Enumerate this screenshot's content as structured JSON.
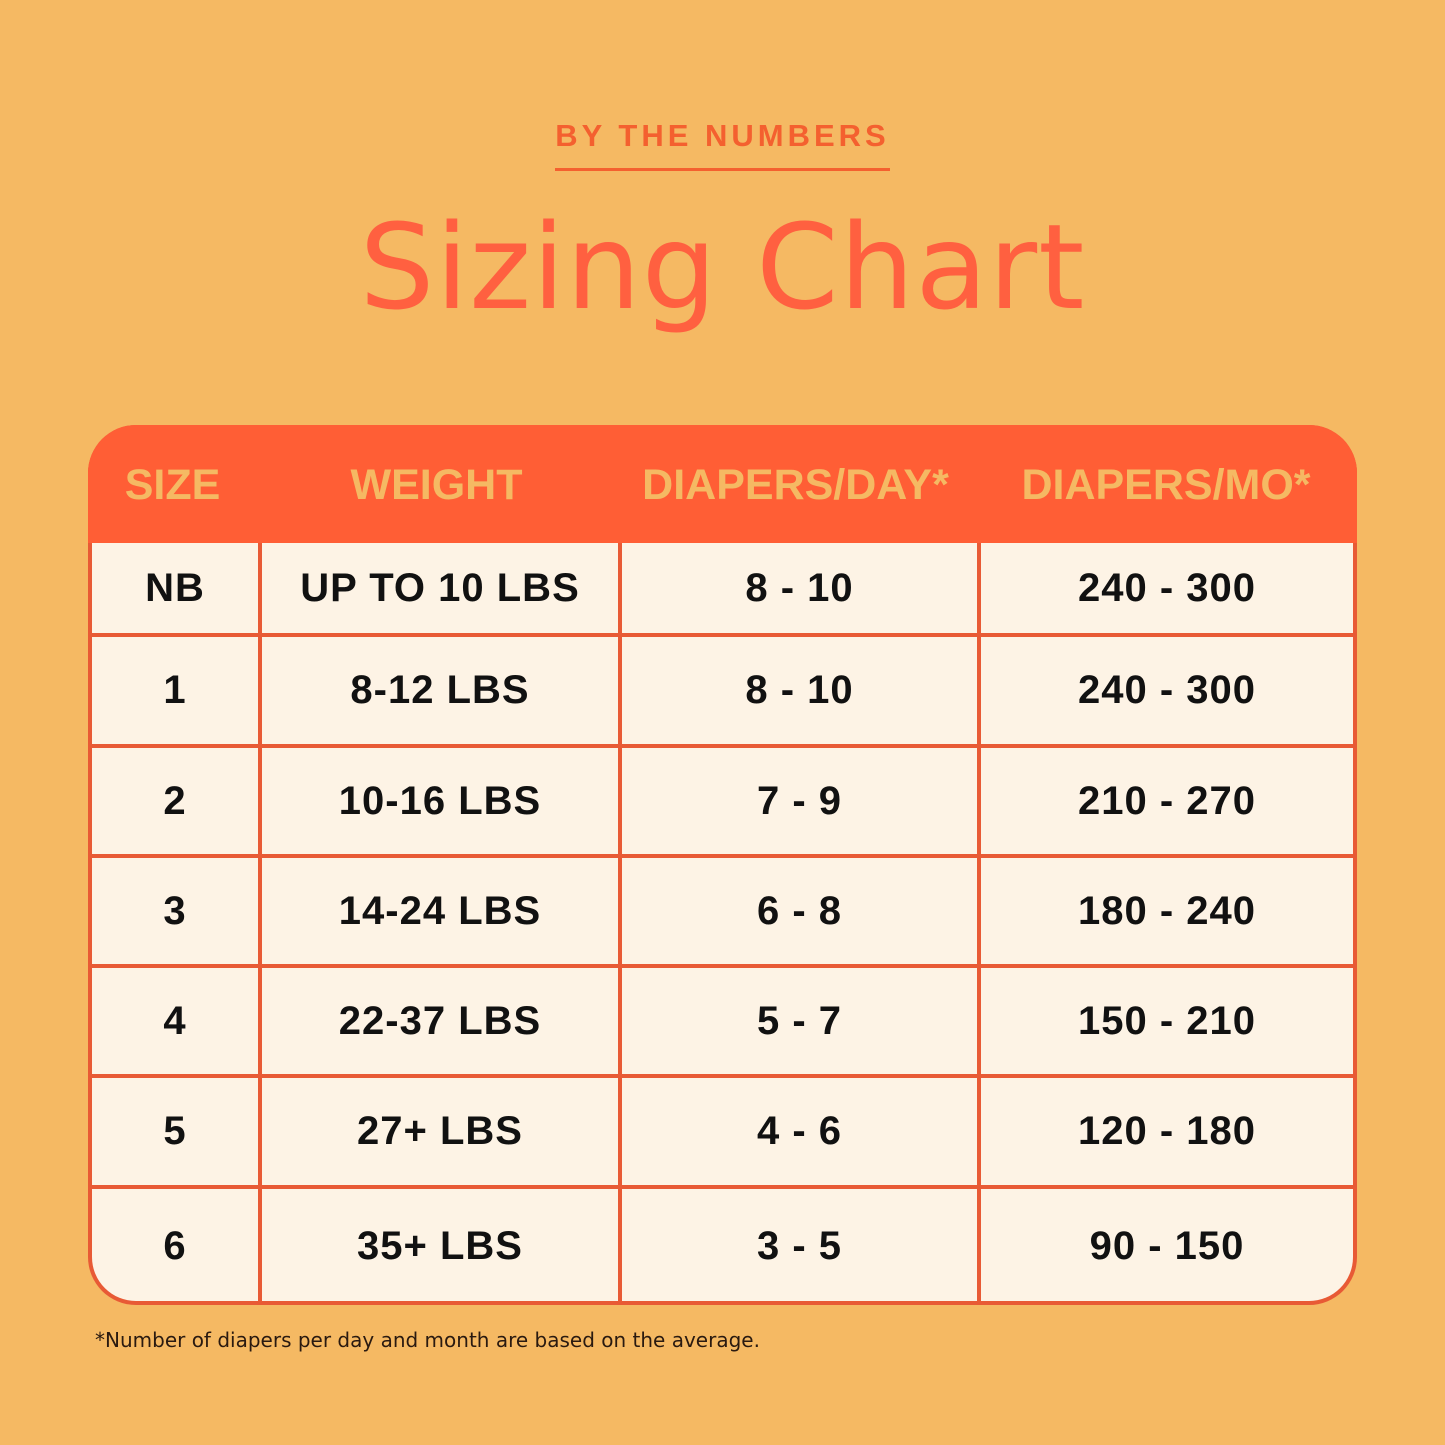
{
  "eyebrow": "BY THE NUMBERS",
  "title": "Sizing Chart",
  "table": {
    "headers": [
      "SIZE",
      "WEIGHT",
      "DIAPERS/DAY*",
      "DIAPERS/MO*"
    ],
    "rows": [
      [
        "NB",
        "UP TO 10 LBS",
        "8 - 10",
        "240 - 300"
      ],
      [
        "1",
        "8-12 LBS",
        "8 - 10",
        "240 - 300"
      ],
      [
        "2",
        "10-16 LBS",
        "7 - 9",
        "210 - 270"
      ],
      [
        "3",
        "14-24 LBS",
        "6 - 8",
        "180 - 240"
      ],
      [
        "4",
        "22-37 LBS",
        "5 - 7",
        "150 - 210"
      ],
      [
        "5",
        "27+ LBS",
        "4 - 6",
        "120 - 180"
      ],
      [
        "6",
        "35+ LBS",
        "3 - 5",
        "90 - 150"
      ]
    ]
  },
  "footnote": "*Number of diapers per day and month are based on the average.",
  "colors": {
    "background": "#f5b963",
    "accent": "#ff5e35",
    "cell": "#fdf3e5"
  }
}
